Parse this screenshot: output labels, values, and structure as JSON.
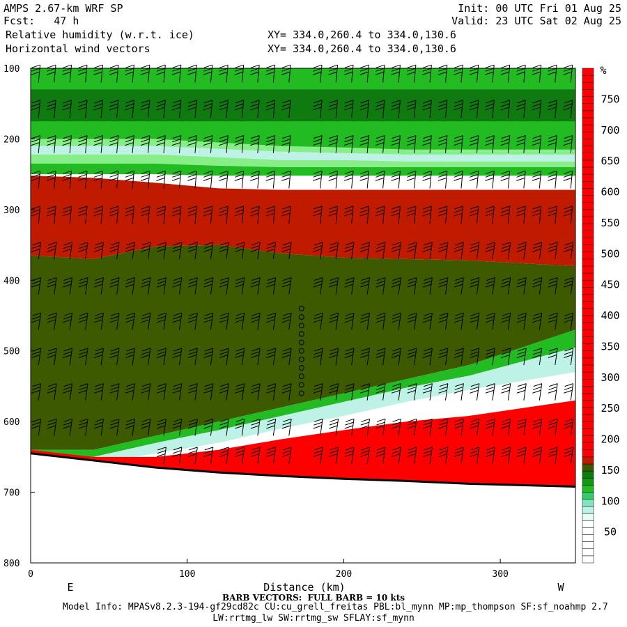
{
  "header": {
    "model": "AMPS 2.67-km WRF SP",
    "fcst": "Fcst:   47 h",
    "field1": "Relative humidity (w.r.t. ice)",
    "field2": "Horizontal wind vectors",
    "init": "Init: 00 UTC Fri 01 Aug 25",
    "valid": "Valid: 23 UTC Sat 02 Aug 25",
    "xy1": "XY= 334.0,260.4 to 334.0,130.6",
    "xy2": "XY= 334.0,260.4 to 334.0,130.6"
  },
  "footer": {
    "barb_note": "BARB VECTORS:  FULL BARB = 10 kts",
    "model_info": "Model Info: MPASv8.2.3-194-gf29cd82c CU:cu_grell_freitas PBL:bl_mynn MP:mp_thompson SF:sf_noahmp 2.7",
    "model_info2": "LW:rrtmg_lw SW:rrtmg_sw SFLAY:sf_mynn"
  },
  "chart_data": {
    "type": "heatmap",
    "title": "Relative humidity (w.r.t. ice)",
    "xlabel": "Distance (km)",
    "ylabel": "",
    "xlim": [
      0,
      348
    ],
    "ylim": [
      100,
      800
    ],
    "y_inverted": true,
    "xticks": [
      0,
      100,
      200,
      300
    ],
    "yticks": [
      100,
      200,
      300,
      400,
      500,
      600,
      700,
      800
    ],
    "direction_labels": {
      "left": "E",
      "right": "W"
    },
    "colorbar": {
      "unit": "%",
      "labels": [
        50,
        100,
        150,
        200,
        250,
        300,
        350,
        400,
        450,
        500,
        550,
        600,
        650,
        700,
        750
      ],
      "colors": [
        "#ffffff",
        "#ffffff",
        "#ffffff",
        "#ffffff",
        "#ffffff",
        "#ffffff",
        "#e6fff5",
        "#bff2e6",
        "#7fe6bf",
        "#33cc66",
        "#22bb22",
        "#119911",
        "#0f7a0f",
        "#3e5a00",
        "#c01a00",
        "#ff0000",
        "#ff0000",
        "#ff0000",
        "#ff0000",
        "#ff0000",
        "#ff0000",
        "#ff0000",
        "#ff0000",
        "#ff0000",
        "#ff0000",
        "#ff0000",
        "#ff0000",
        "#ff0000",
        "#ff0000",
        "#ff0000",
        "#ff0000",
        "#ff0000",
        "#ff0000",
        "#ff0000",
        "#ff0000",
        "#ff0000",
        "#ff0000",
        "#ff0000",
        "#ff0000",
        "#ff0000",
        "#ff0000",
        "#ff0000",
        "#ff0000",
        "#ff0000",
        "#ff0000",
        "#ff0000",
        "#ff0000",
        "#ff0000",
        "#ff0000",
        "#ff0000",
        "#ff0000",
        "#ff0000",
        "#ff0000",
        "#ff0000",
        "#ff0000",
        "#ff0000",
        "#ff0000",
        "#ff0000",
        "#ff0000",
        "#ff0000",
        "#ff0000",
        "#ff0000",
        "#ff0000",
        "#ff0000",
        "#ff0000",
        "#ff0000",
        "#ff0000",
        "#ff0000",
        "#ff0000",
        "#ff0000"
      ]
    },
    "humidity_layers": [
      {
        "name": "upper-moist-band",
        "p_top": [
          100,
          100,
          100,
          100,
          100,
          100,
          100,
          100,
          100
        ],
        "p_bot": [
          250,
          250,
          250,
          252,
          252,
          252,
          252,
          252,
          252
        ],
        "color": "#22bb22"
      },
      {
        "name": "upper-dark-band",
        "p_top": [
          130,
          130,
          130,
          130,
          130,
          130,
          130,
          130,
          130
        ],
        "p_bot": [
          175,
          175,
          175,
          175,
          175,
          175,
          175,
          175,
          175
        ],
        "color": "#0f7a0f"
      },
      {
        "name": "upper-light-band",
        "p_top": [
          200,
          200,
          200,
          205,
          210,
          212,
          215,
          215,
          215
        ],
        "p_bot": [
          235,
          235,
          235,
          238,
          240,
          240,
          240,
          240,
          240
        ],
        "color": "#88ee88"
      },
      {
        "name": "upper-cyan-streak",
        "p_top": [
          210,
          210,
          210,
          214,
          218,
          220,
          222,
          222,
          222
        ],
        "p_bot": [
          222,
          222,
          222,
          226,
          230,
          230,
          232,
          232,
          232
        ],
        "color": "#bff2e6"
      },
      {
        "name": "supersaturated-layer",
        "p_top": [
          252,
          255,
          262,
          270,
          272,
          272,
          272,
          272,
          272
        ],
        "p_bot": [
          365,
          370,
          352,
          350,
          362,
          368,
          370,
          372,
          380
        ],
        "color": "#c01a00"
      },
      {
        "name": "mid-dry-layer",
        "p_top": [
          365,
          370,
          352,
          350,
          362,
          368,
          370,
          372,
          380
        ],
        "p_bot": [
          640,
          640,
          620,
          600,
          580,
          560,
          540,
          520,
          470
        ],
        "color": "#3e5a00"
      },
      {
        "name": "lower-moist-band",
        "p_top": [
          640,
          640,
          620,
          600,
          580,
          560,
          540,
          520,
          470
        ],
        "p_bot": [
          655,
          655,
          640,
          625,
          605,
          585,
          565,
          550,
          520
        ],
        "color": "#22bb22"
      },
      {
        "name": "lower-light-band",
        "p_top": [
          650,
          650,
          630,
          612,
          592,
          572,
          552,
          535,
          495
        ],
        "p_bot": [
          660,
          660,
          645,
          630,
          610,
          592,
          572,
          555,
          530
        ],
        "color": "#bff2e6"
      },
      {
        "name": "boundary-layer-red",
        "p_top": [
          640,
          650,
          650,
          640,
          625,
          612,
          600,
          592,
          570
        ],
        "p_bot": [
          655,
          665,
          672,
          680,
          684,
          686,
          688,
          690,
          692
        ],
        "color": "#ff0000"
      }
    ],
    "layer_x": [
      0,
      40,
      80,
      120,
      160,
      200,
      240,
      280,
      348
    ],
    "terrain_p": [
      645,
      655,
      665,
      672,
      677,
      681,
      684,
      688,
      692
    ],
    "barbs": {
      "unit": "kts",
      "full_barb_kts": 10,
      "x_spacing_km": 10,
      "levels_hpa": [
        120,
        170,
        220,
        270,
        320,
        370,
        420,
        470,
        520,
        570,
        620,
        660
      ],
      "calm_column_km": 173
    }
  }
}
